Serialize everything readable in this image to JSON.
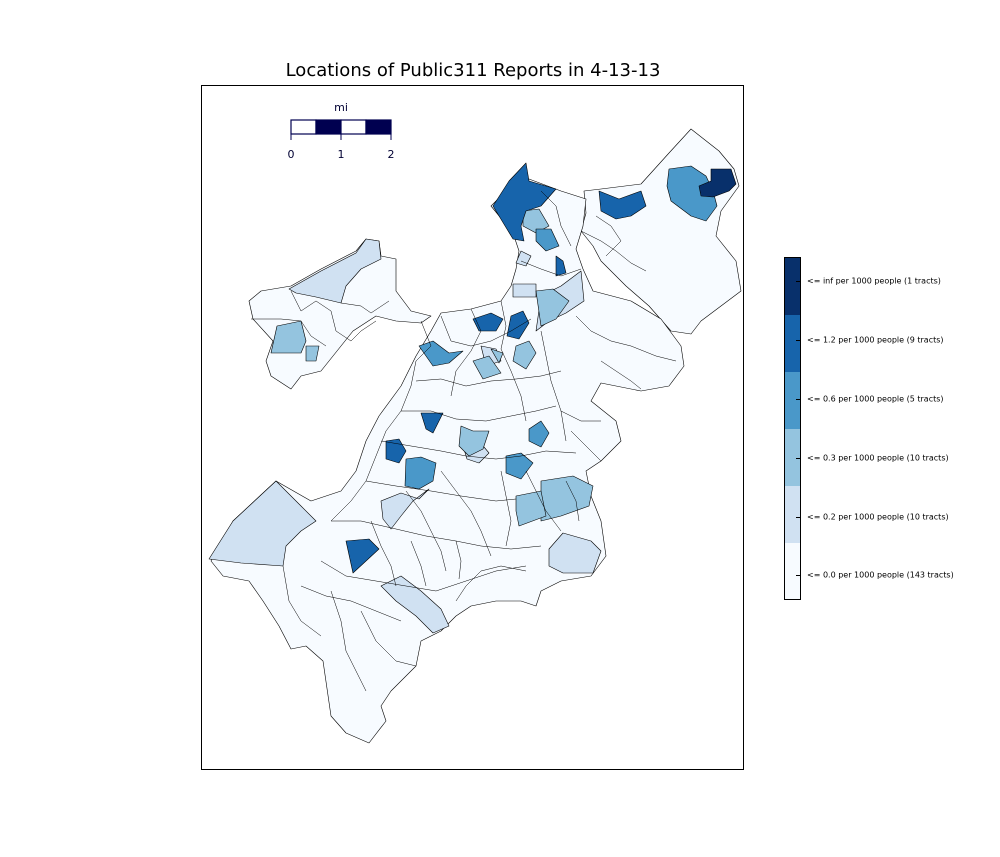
{
  "title": "Locations of Public311 Reports in 4-13-13",
  "scale_bar": {
    "unit": "mi",
    "ticks": [
      "0",
      "1",
      "2"
    ]
  },
  "legend": {
    "classes": [
      {
        "label": "<= inf per 1000 people (1 tracts)",
        "color": "#08306b"
      },
      {
        "label": "<= 1.2 per 1000 people (9 tracts)",
        "color": "#1764ab"
      },
      {
        "label": "<= 0.6 per 1000 people (5 tracts)",
        "color": "#4a98c9"
      },
      {
        "label": "<= 0.3 per 1000 people (10 tracts)",
        "color": "#94c4df"
      },
      {
        "label": "<= 0.2 per 1000 people (10 tracts)",
        "color": "#d0e1f2"
      },
      {
        "label": "<= 0.0 per 1000 people (143 tracts)",
        "color": "#f7fbff"
      }
    ]
  },
  "colors": {
    "edge": "#000000",
    "scale_dark": "#000050"
  }
}
